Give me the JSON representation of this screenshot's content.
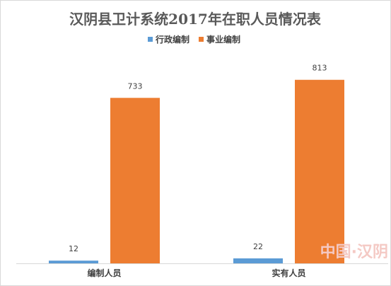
{
  "chart_data": {
    "type": "bar",
    "title": "汉阴县卫计系统2017年在职人员情况表",
    "categories": [
      "编制人员",
      "实有人员"
    ],
    "series": [
      {
        "name": "行政编制",
        "values": [
          12,
          22
        ],
        "color": "#5b9bd5"
      },
      {
        "name": "事业编制",
        "values": [
          733,
          813
        ],
        "color": "#ed7d31"
      }
    ],
    "ylim": [
      0,
      900
    ],
    "grid": false,
    "legend": "top-center"
  },
  "watermark": {
    "text": "中国·汉阴",
    "color": "#f4c9c4"
  }
}
